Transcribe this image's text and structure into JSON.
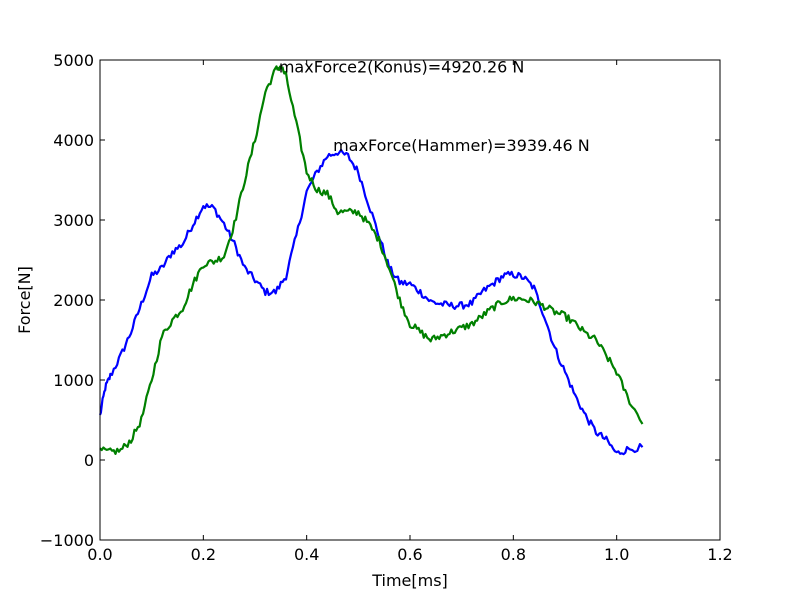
{
  "chart_data": {
    "type": "line",
    "title": "",
    "xlabel": "Time[ms]",
    "ylabel": "Force[N]",
    "xlim": [
      0.0,
      1.2
    ],
    "ylim": [
      -1000,
      5000
    ],
    "xticks": [
      0.0,
      0.2,
      0.4,
      0.6,
      0.8,
      1.0,
      1.2
    ],
    "xtick_labels": [
      "0.0",
      "0.2",
      "0.4",
      "0.6",
      "0.8",
      "1.0",
      "1.2"
    ],
    "yticks": [
      -1000,
      0,
      1000,
      2000,
      3000,
      4000,
      5000
    ],
    "ytick_labels": [
      "−1000",
      "0",
      "1000",
      "2000",
      "3000",
      "4000",
      "5000"
    ],
    "grid": false,
    "series": [
      {
        "color": "#0000ff",
        "x": [
          0.0,
          0.01,
          0.02,
          0.04,
          0.06,
          0.08,
          0.1,
          0.12,
          0.14,
          0.16,
          0.18,
          0.2,
          0.22,
          0.24,
          0.26,
          0.28,
          0.3,
          0.32,
          0.34,
          0.36,
          0.38,
          0.4,
          0.42,
          0.44,
          0.46,
          0.48,
          0.5,
          0.52,
          0.54,
          0.56,
          0.58,
          0.6,
          0.62,
          0.64,
          0.66,
          0.68,
          0.7,
          0.72,
          0.74,
          0.76,
          0.78,
          0.8,
          0.82,
          0.84,
          0.86,
          0.88,
          0.9,
          0.92,
          0.94,
          0.96,
          0.98,
          1.0,
          1.02,
          1.05
        ],
        "y": [
          550,
          900,
          1050,
          1300,
          1600,
          1950,
          2300,
          2400,
          2600,
          2700,
          2950,
          3180,
          3150,
          2950,
          2700,
          2400,
          2250,
          2100,
          2100,
          2300,
          2800,
          3350,
          3600,
          3800,
          3850,
          3800,
          3600,
          3200,
          2800,
          2400,
          2220,
          2200,
          2100,
          1980,
          1950,
          1930,
          1930,
          1960,
          2100,
          2200,
          2300,
          2320,
          2280,
          2150,
          1800,
          1400,
          1100,
          800,
          550,
          350,
          250,
          80,
          130,
          160
        ]
      },
      {
        "color": "#008000",
        "x": [
          0.0,
          0.02,
          0.04,
          0.06,
          0.08,
          0.1,
          0.12,
          0.14,
          0.16,
          0.18,
          0.2,
          0.22,
          0.24,
          0.26,
          0.28,
          0.3,
          0.32,
          0.34,
          0.35,
          0.36,
          0.38,
          0.4,
          0.42,
          0.44,
          0.46,
          0.48,
          0.5,
          0.52,
          0.54,
          0.56,
          0.58,
          0.6,
          0.62,
          0.64,
          0.66,
          0.68,
          0.7,
          0.72,
          0.74,
          0.76,
          0.78,
          0.8,
          0.82,
          0.84,
          0.86,
          0.88,
          0.9,
          0.92,
          0.94,
          0.96,
          0.98,
          1.0,
          1.02,
          1.05
        ],
        "y": [
          120,
          100,
          120,
          250,
          500,
          1000,
          1550,
          1750,
          1900,
          2200,
          2450,
          2480,
          2550,
          2950,
          3500,
          4000,
          4600,
          4880,
          4920,
          4800,
          4200,
          3600,
          3380,
          3330,
          3100,
          3100,
          3100,
          2950,
          2750,
          2400,
          2000,
          1700,
          1600,
          1500,
          1550,
          1600,
          1650,
          1700,
          1800,
          1900,
          1980,
          2020,
          2010,
          1980,
          1920,
          1850,
          1800,
          1700,
          1580,
          1500,
          1300,
          1100,
          800,
          450
        ]
      }
    ],
    "annotations": [
      {
        "text": "maxForce2(Konus)=4920.26 N",
        "x": 0.35,
        "y": 4920
      },
      {
        "text": "maxForce(Hammer)=3939.46 N",
        "x": 0.455,
        "y": 3939
      }
    ]
  }
}
